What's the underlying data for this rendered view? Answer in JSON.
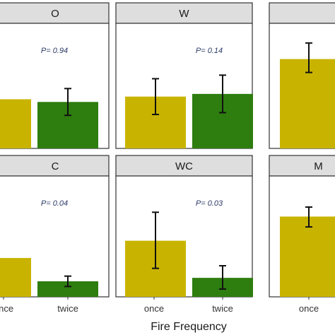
{
  "chart_data": {
    "type": "bar",
    "xlabel": "Fire Frequency",
    "ylabel": "",
    "colors": {
      "once": "#c8b400",
      "twice": "#2e7d0f",
      "strip": "#dedede",
      "border": "#333333"
    },
    "panels": [
      {
        "strip": "O",
        "p_label": "P= 0.94",
        "categories": [
          "once",
          "twice"
        ],
        "values": [
          0.55,
          0.52
        ],
        "err_low": [
          0.5,
          0.37
        ],
        "err_high": [
          0.6,
          0.67
        ]
      },
      {
        "strip": "W",
        "p_label": "P= 0.14",
        "categories": [
          "once",
          "twice"
        ],
        "values": [
          0.58,
          0.61
        ],
        "err_low": [
          0.38,
          0.4
        ],
        "err_high": [
          0.78,
          0.82
        ]
      },
      {
        "strip": "",
        "p_label": "",
        "categories": [
          "once"
        ],
        "values": [
          1.0
        ],
        "err_low": [
          0.85
        ],
        "err_high": [
          1.18
        ]
      },
      {
        "strip": "C",
        "p_label": "P= 0.04",
        "categories": [
          "once",
          "twice"
        ],
        "values": [
          0.45,
          0.18
        ],
        "err_low": [
          0.4,
          0.12
        ],
        "err_high": [
          0.5,
          0.24
        ]
      },
      {
        "strip": "WC",
        "p_label": "P= 0.03",
        "categories": [
          "once",
          "twice"
        ],
        "values": [
          0.65,
          0.22
        ],
        "err_low": [
          0.33,
          0.09
        ],
        "err_high": [
          0.98,
          0.36
        ]
      },
      {
        "strip": "M",
        "p_label": "",
        "categories": [
          "once"
        ],
        "values": [
          0.93
        ],
        "err_low": [
          0.81
        ],
        "err_high": [
          1.04
        ]
      }
    ]
  }
}
